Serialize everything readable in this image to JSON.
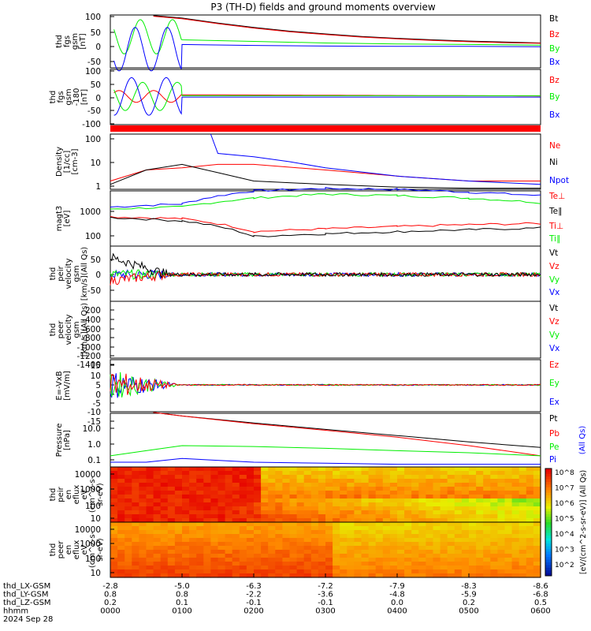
{
  "title": "P3 (TH-D) fields and ground moments overview",
  "colors": {
    "black": "#000000",
    "red": "#ff0000",
    "green": "#00ee00",
    "blue": "#0000ff"
  },
  "x_ticks": [
    "0000",
    "0100",
    "0200",
    "0300",
    "0400",
    "0500",
    "0600"
  ],
  "footer": {
    "row_labels": [
      "thd_LX-GSM",
      "thd_LY-GSM",
      "thd_LZ-GSM",
      "hhmm",
      "2024 Sep 28"
    ],
    "lx": [
      "-2.8",
      "-5.0",
      "-6.3",
      "-7.2",
      "-7.9",
      "-8.3",
      "-8.6"
    ],
    "ly": [
      "0.8",
      "0.8",
      "-2.2",
      "-3.6",
      "-4.8",
      "-5.9",
      "-6.8"
    ],
    "lz": [
      "0.2",
      "0.1",
      "-0.1",
      "-0.1",
      "0.0",
      "0.2",
      "0.5"
    ]
  },
  "panels": {
    "fgs": {
      "ylabel": [
        "thd",
        "fgs",
        "gsm",
        "[nT]"
      ],
      "ticks": [
        "100",
        "50",
        "0",
        "-50"
      ],
      "legend": [
        "Bt",
        "Bz",
        "By",
        "Bx"
      ]
    },
    "fgs2": {
      "ylabel": [
        "thd",
        "fgs",
        "gsm",
        "-180",
        "[nT]"
      ],
      "ticks": [
        "100",
        "50",
        "0",
        "-50",
        "-100"
      ],
      "legend": [
        "Bz",
        "By",
        "Bx"
      ]
    },
    "density": {
      "ylabel": [
        "Density",
        "[1/cc]",
        "[cm-3]"
      ],
      "ticks": [
        "100",
        "10",
        "1"
      ],
      "legend": [
        "Ne",
        "Ni",
        "Npot"
      ]
    },
    "temp": {
      "ylabel": [
        "magt3",
        "[eV]"
      ],
      "ticks": [
        "1000",
        "100"
      ],
      "legend": [
        "Te⊥",
        "Te∥",
        "Ti⊥",
        "Ti∥"
      ]
    },
    "vel": {
      "ylabel": [
        "thd",
        "peir",
        "velocity",
        "gsm",
        "[km/s](All Qs)"
      ],
      "ticks": [
        "50",
        "0",
        "-50"
      ],
      "legend": [
        "Vt",
        "Vz",
        "Vy",
        "Vx"
      ]
    },
    "vele": {
      "ylabel": [
        "thd",
        "peer",
        "velocity",
        "gsm",
        "[km/s](All Qs)"
      ],
      "ticks": [
        "-200",
        "-400",
        "-600",
        "-800",
        "-1000",
        "-1200",
        "-1400"
      ],
      "legend": [
        "Vt",
        "Vz",
        "Vy",
        "Vx"
      ]
    },
    "efield": {
      "ylabel": [
        "E=-VxB",
        "[mV/m]"
      ],
      "ticks": [
        "15",
        "10",
        "5",
        "0",
        "-5",
        "-10",
        "-15"
      ],
      "legend": [
        "Ez",
        "Ey",
        "Ex"
      ]
    },
    "pressure": {
      "ylabel": [
        "Pressure",
        "[nPa]"
      ],
      "ticks": [
        "10.0",
        "1.0",
        "0.1"
      ],
      "legend": [
        "Pt",
        "Pb",
        "Pe",
        "Pi"
      ],
      "side": "(All Qs)"
    },
    "spec_i": {
      "ylabel": [
        "thd",
        "peir",
        "en",
        "eflux",
        "eV",
        "(cm^2-s-",
        "sr-eV)"
      ],
      "ticks": [
        "10000",
        "1000",
        "100",
        "10"
      ]
    },
    "spec_e": {
      "ylabel": [
        "thd",
        "peer",
        "en",
        "eflux",
        "eV",
        "(cm^2-s-",
        "sr-eV)"
      ],
      "ticks": [
        "10000",
        "1000",
        "100",
        "10"
      ]
    }
  },
  "colorbar": {
    "ticks": [
      "10^8",
      "10^7",
      "10^6",
      "10^5",
      "10^4",
      "10^3",
      "10^2"
    ],
    "label": "[eV/(cm^2-s-sr-eV)] (All Qs)"
  },
  "chart_data": {
    "type": "line",
    "title": "P3 (TH-D) fields and ground moments overview",
    "x_range_hhmm": [
      "0000",
      "0600"
    ],
    "panels": [
      {
        "name": "fgs gsm",
        "ylim": [
          -60,
          110
        ],
        "series": [
          {
            "name": "Bt",
            "x": [
              0.6,
              1.0,
              1.5,
              2.0,
              2.5,
              3.0,
              3.5,
              4.0,
              4.5,
              5.0,
              5.5,
              6.0
            ],
            "values": [
              108,
              100,
              84,
              70,
              58,
              49,
              41,
              35,
              30,
              26,
              23,
              20
            ]
          },
          {
            "name": "Bz",
            "x": [
              0.6,
              1.0,
              1.5,
              2.0,
              2.5,
              3.0,
              3.5,
              4.0,
              4.5,
              5.0,
              5.5,
              6.0
            ],
            "values": [
              106,
              98,
              82,
              68,
              56,
              47,
              39,
              33,
              28,
              24,
              21,
              19
            ]
          },
          {
            "name": "By",
            "x": [
              0.5,
              1.0,
              2.0,
              3.0,
              4.0,
              5.0,
              6.0
            ],
            "values": [
              0,
              30,
              25,
              20,
              17,
              15,
              13
            ]
          },
          {
            "name": "Bx",
            "x": [
              0.5,
              1.0,
              2.0,
              3.0,
              4.0,
              5.0,
              6.0
            ],
            "values": [
              -50,
              15,
              12,
              10,
              9,
              9,
              8
            ]
          }
        ]
      },
      {
        "name": "density",
        "ylim": [
          1,
          100
        ],
        "series": [
          {
            "name": "Ne",
            "x": [
              0,
              0.5,
              1.0,
              1.5,
              2.0,
              3.0,
              4.0,
              5.0,
              6.0
            ],
            "values": [
              2,
              5,
              6,
              8,
              8,
              5,
              3,
              2,
              2
            ]
          },
          {
            "name": "Ni",
            "x": [
              0,
              0.5,
              1.0,
              1.5,
              2.0,
              3.0,
              4.0,
              5.0,
              6.0
            ],
            "values": [
              1.5,
              5,
              8,
              4,
              2,
              1.5,
              1.2,
              1.1,
              1.1
            ]
          },
          {
            "name": "Npot",
            "x": [
              1.4,
              1.5,
              2.0,
              2.5,
              3.0,
              4.0,
              5.0,
              6.0
            ],
            "values": [
              100,
              20,
              15,
              10,
              6,
              3,
              2,
              1.5
            ]
          }
        ]
      },
      {
        "name": "pressure",
        "ylim": [
          0.06,
          20
        ],
        "series": [
          {
            "name": "Pt",
            "x": [
              0.6,
              1.0,
              2.0,
              3.0,
              4.0,
              5.0,
              6.0
            ],
            "values": [
              22,
              15,
              7,
              3.5,
              1.8,
              0.9,
              0.5
            ]
          },
          {
            "name": "Pb",
            "x": [
              0.6,
              1.0,
              2.0,
              3.0,
              4.0,
              5.0,
              6.0
            ],
            "values": [
              22,
              15,
              6.5,
              3.2,
              1.5,
              0.6,
              0.2
            ]
          },
          {
            "name": "Pe",
            "x": [
              0,
              0.5,
              1.0,
              2.0,
              3.0,
              4.0,
              5.0,
              6.0
            ],
            "values": [
              0.2,
              0.35,
              0.6,
              0.55,
              0.45,
              0.35,
              0.28,
              0.2
            ]
          },
          {
            "name": "Pi",
            "x": [
              0,
              0.5,
              1.0,
              2.0,
              3.0,
              4.0,
              5.0,
              6.0
            ],
            "values": [
              0.1,
              0.1,
              0.15,
              0.1,
              0.09,
              0.08,
              0.08,
              0.08
            ]
          }
        ]
      }
    ]
  }
}
